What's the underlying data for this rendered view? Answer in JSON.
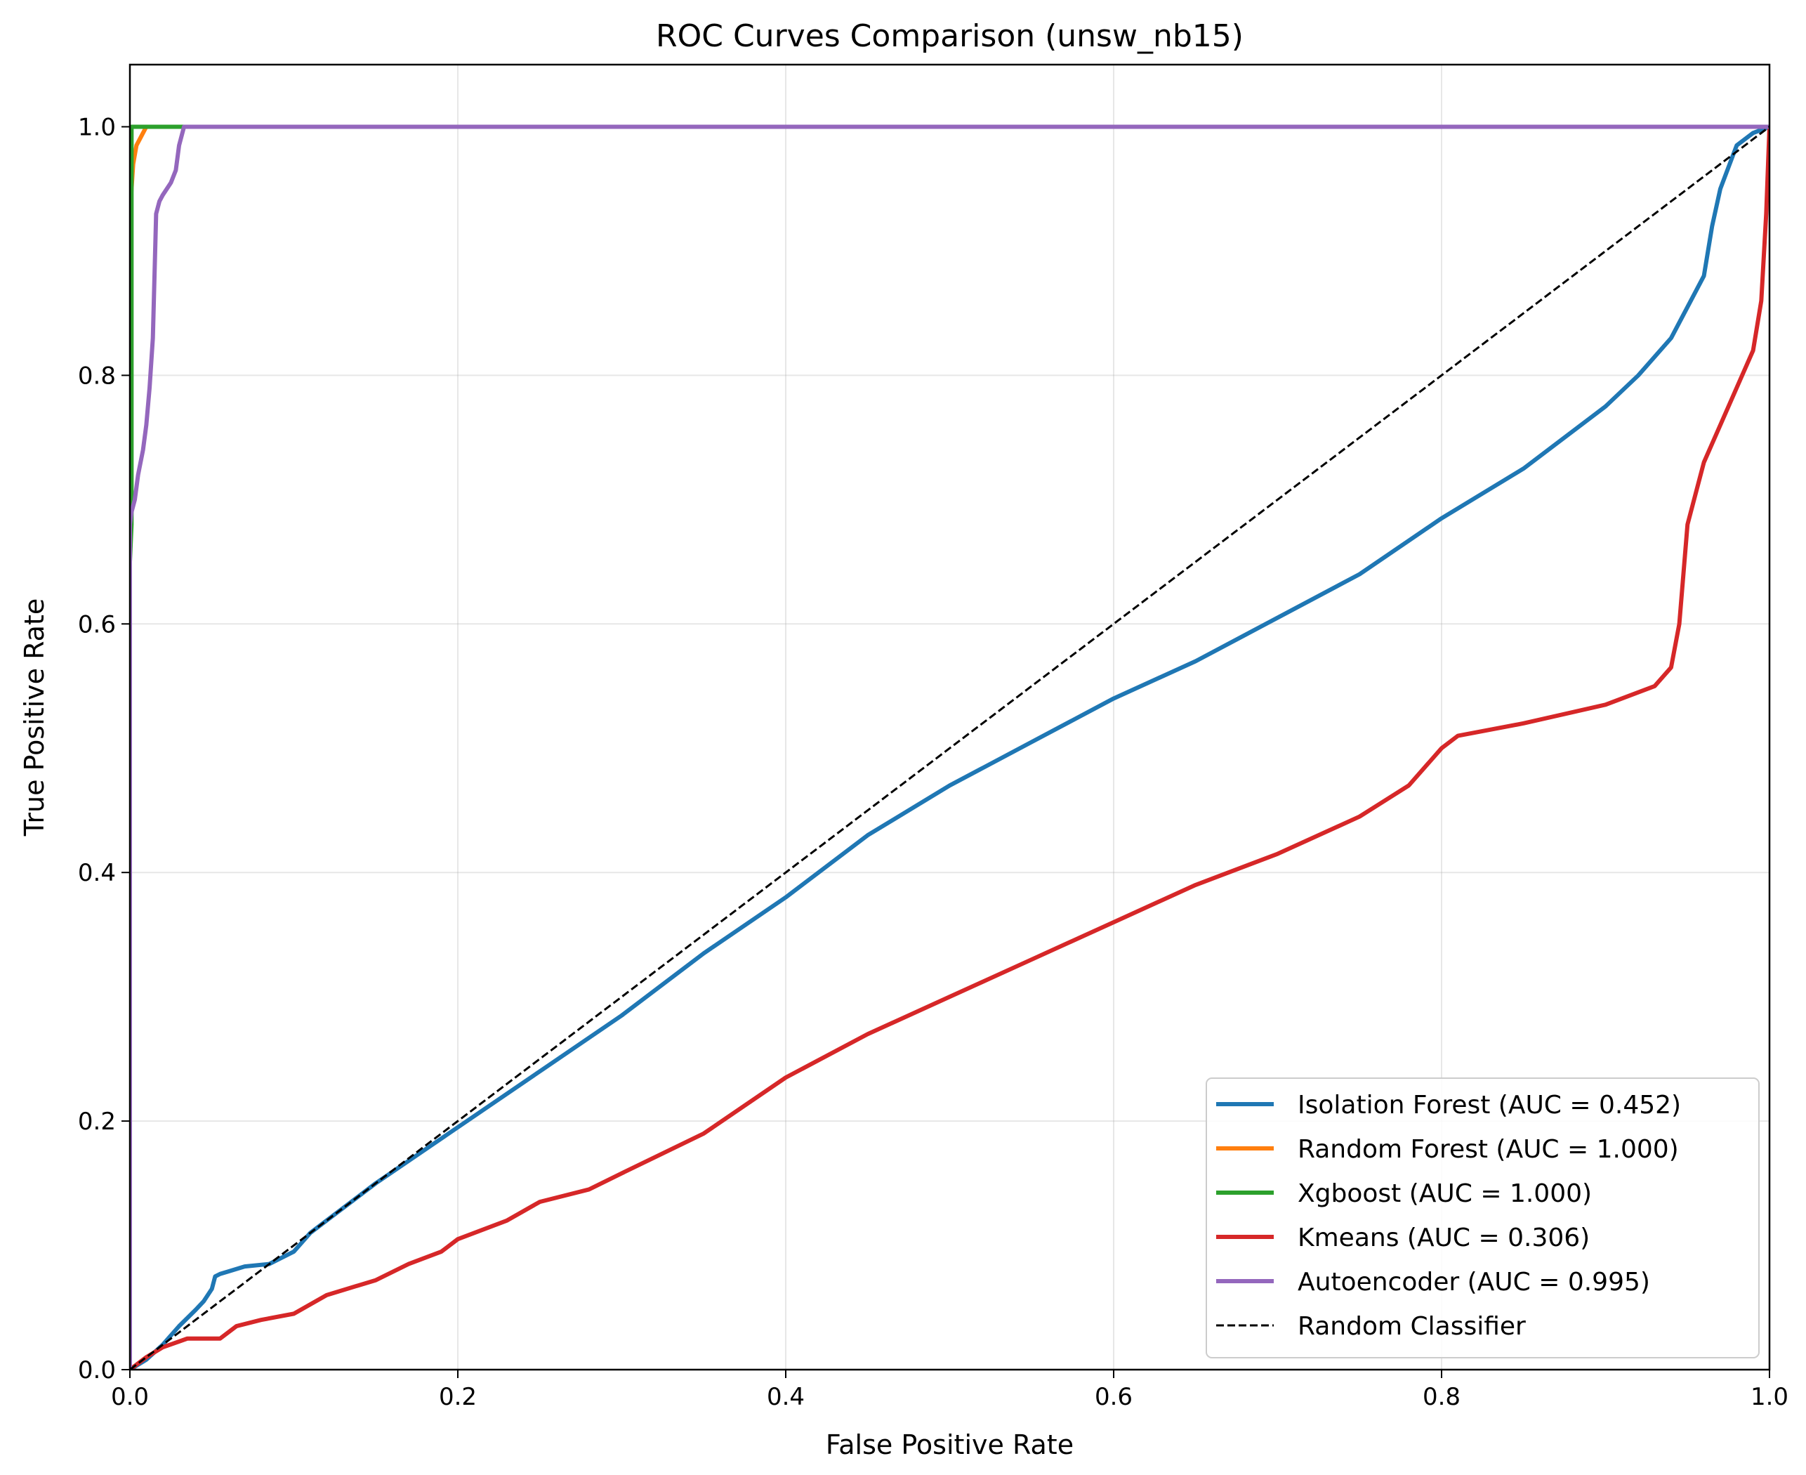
{
  "chart_data": {
    "type": "line",
    "title": "ROC Curves Comparison (unsw_nb15)",
    "xlabel": "False Positive Rate",
    "ylabel": "True Positive Rate",
    "xlim": [
      0,
      1
    ],
    "ylim": [
      0,
      1.05
    ],
    "xticks": [
      "0.0",
      "0.2",
      "0.4",
      "0.6",
      "0.8",
      "1.0"
    ],
    "yticks": [
      "0.0",
      "0.2",
      "0.4",
      "0.6",
      "0.8",
      "1.0"
    ],
    "grid": true,
    "legend_position": "lower right",
    "series": [
      {
        "name": "Isolation Forest (AUC = 0.452)",
        "color": "#1f77b4",
        "dash": "solid",
        "x": [
          0,
          0.01,
          0.02,
          0.03,
          0.04,
          0.045,
          0.05,
          0.052,
          0.055,
          0.06,
          0.07,
          0.085,
          0.1,
          0.11,
          0.12,
          0.15,
          0.2,
          0.25,
          0.3,
          0.35,
          0.4,
          0.45,
          0.5,
          0.55,
          0.6,
          0.65,
          0.7,
          0.75,
          0.8,
          0.85,
          0.9,
          0.92,
          0.94,
          0.95,
          0.96,
          0.965,
          0.97,
          0.98,
          0.99,
          1.0
        ],
        "y": [
          0,
          0.008,
          0.02,
          0.035,
          0.048,
          0.055,
          0.065,
          0.075,
          0.077,
          0.079,
          0.083,
          0.085,
          0.095,
          0.11,
          0.12,
          0.15,
          0.195,
          0.24,
          0.285,
          0.335,
          0.38,
          0.43,
          0.47,
          0.505,
          0.54,
          0.57,
          0.605,
          0.64,
          0.685,
          0.725,
          0.775,
          0.8,
          0.83,
          0.855,
          0.88,
          0.92,
          0.95,
          0.985,
          0.995,
          1.0
        ]
      },
      {
        "name": "Random Forest (AUC = 1.000)",
        "color": "#ff7f0e",
        "dash": "solid",
        "x": [
          0,
          0.0,
          0.002,
          0.004,
          0.006,
          0.008,
          0.01,
          1.0
        ],
        "y": [
          0,
          0.93,
          0.97,
          0.985,
          0.99,
          0.995,
          1.0,
          1.0
        ]
      },
      {
        "name": "Xgboost (AUC = 1.000)",
        "color": "#2ca02c",
        "dash": "solid",
        "x": [
          0,
          0.0,
          0.001,
          0.001,
          0.03,
          1.0
        ],
        "y": [
          0,
          0.65,
          0.68,
          1.0,
          1.0,
          1.0
        ]
      },
      {
        "name": "Kmeans (AUC = 0.306)",
        "color": "#d62728",
        "dash": "solid",
        "x": [
          0,
          0.01,
          0.02,
          0.035,
          0.05,
          0.055,
          0.065,
          0.08,
          0.1,
          0.12,
          0.15,
          0.17,
          0.19,
          0.2,
          0.23,
          0.25,
          0.28,
          0.3,
          0.35,
          0.4,
          0.45,
          0.5,
          0.55,
          0.6,
          0.65,
          0.7,
          0.75,
          0.78,
          0.8,
          0.81,
          0.85,
          0.9,
          0.93,
          0.94,
          0.945,
          0.95,
          0.96,
          0.97,
          0.98,
          0.99,
          0.995,
          0.998,
          1.0
        ],
        "y": [
          0,
          0.01,
          0.018,
          0.025,
          0.025,
          0.025,
          0.035,
          0.04,
          0.045,
          0.06,
          0.072,
          0.085,
          0.095,
          0.105,
          0.12,
          0.135,
          0.145,
          0.158,
          0.19,
          0.235,
          0.27,
          0.3,
          0.33,
          0.36,
          0.39,
          0.415,
          0.445,
          0.47,
          0.5,
          0.51,
          0.52,
          0.535,
          0.55,
          0.565,
          0.6,
          0.68,
          0.73,
          0.76,
          0.79,
          0.82,
          0.86,
          0.93,
          1.0
        ]
      },
      {
        "name": "Autoencoder (AUC = 0.995)",
        "color": "#9467bd",
        "dash": "solid",
        "x": [
          0,
          0.0,
          0.001,
          0.003,
          0.005,
          0.008,
          0.01,
          0.012,
          0.014,
          0.015,
          0.016,
          0.018,
          0.02,
          0.025,
          0.028,
          0.03,
          0.033,
          1.0
        ],
        "y": [
          0,
          0.68,
          0.69,
          0.7,
          0.72,
          0.74,
          0.76,
          0.79,
          0.83,
          0.88,
          0.93,
          0.94,
          0.945,
          0.955,
          0.965,
          0.985,
          1.0,
          1.0
        ]
      },
      {
        "name": "Random Classifier",
        "color": "#000000",
        "dash": "dashed",
        "x": [
          0,
          1
        ],
        "y": [
          0,
          1
        ]
      }
    ]
  }
}
